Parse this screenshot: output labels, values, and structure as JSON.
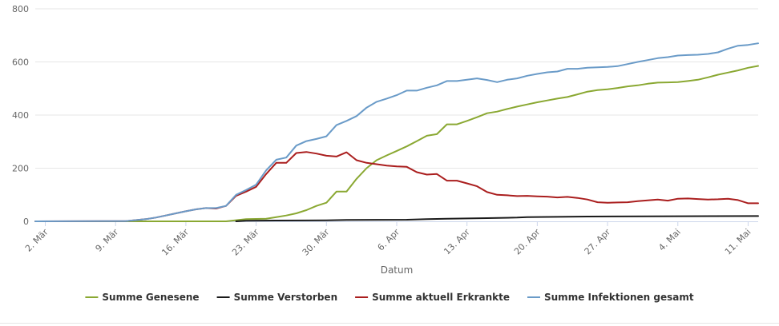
{
  "chart_data": {
    "type": "line",
    "xlabel": "Datum",
    "ylabel": "",
    "ylim": [
      0,
      800
    ],
    "yticks": [
      0,
      200,
      400,
      600,
      800
    ],
    "x_start": "2020-03-01",
    "x_end": "2020-05-12",
    "x_tick_labels": [
      "2. Mär",
      "9. Mär",
      "16. Mär",
      "23. Mär",
      "30. Mär",
      "6. Apr",
      "13. Apr",
      "20. Apr",
      "27. Apr",
      "4. Mai",
      "11. Mai"
    ],
    "x_tick_dates": [
      "2020-03-02",
      "2020-03-09",
      "2020-03-16",
      "2020-03-23",
      "2020-03-30",
      "2020-04-06",
      "2020-04-13",
      "2020-04-20",
      "2020-04-27",
      "2020-05-04",
      "2020-05-11"
    ],
    "grid": true,
    "legend_position": "bottom",
    "series": [
      {
        "name": "Summe Genesene",
        "color": "#8aa832",
        "points": [
          [
            "2020-03-01",
            0
          ],
          [
            "2020-03-20",
            0
          ],
          [
            "2020-03-22",
            8
          ],
          [
            "2020-03-24",
            10
          ],
          [
            "2020-03-25",
            16
          ],
          [
            "2020-03-26",
            22
          ],
          [
            "2020-03-27",
            30
          ],
          [
            "2020-03-28",
            42
          ],
          [
            "2020-03-29",
            58
          ],
          [
            "2020-03-30",
            70
          ],
          [
            "2020-03-31",
            112
          ],
          [
            "2020-04-01",
            112
          ],
          [
            "2020-04-02",
            160
          ],
          [
            "2020-04-03",
            200
          ],
          [
            "2020-04-04",
            230
          ],
          [
            "2020-04-05",
            248
          ],
          [
            "2020-04-06",
            265
          ],
          [
            "2020-04-07",
            282
          ],
          [
            "2020-04-08",
            302
          ],
          [
            "2020-04-09",
            322
          ],
          [
            "2020-04-10",
            328
          ],
          [
            "2020-04-11",
            365
          ],
          [
            "2020-04-12",
            365
          ],
          [
            "2020-04-13",
            378
          ],
          [
            "2020-04-14",
            392
          ],
          [
            "2020-04-15",
            407
          ],
          [
            "2020-04-16",
            413
          ],
          [
            "2020-04-17",
            423
          ],
          [
            "2020-04-18",
            432
          ],
          [
            "2020-04-19",
            440
          ],
          [
            "2020-04-20",
            448
          ],
          [
            "2020-04-21",
            455
          ],
          [
            "2020-04-22",
            462
          ],
          [
            "2020-04-23",
            468
          ],
          [
            "2020-04-24",
            478
          ],
          [
            "2020-04-25",
            488
          ],
          [
            "2020-04-26",
            494
          ],
          [
            "2020-04-27",
            497
          ],
          [
            "2020-04-28",
            502
          ],
          [
            "2020-04-29",
            508
          ],
          [
            "2020-04-30",
            512
          ],
          [
            "2020-05-01",
            518
          ],
          [
            "2020-05-02",
            522
          ],
          [
            "2020-05-03",
            523
          ],
          [
            "2020-05-04",
            524
          ],
          [
            "2020-05-05",
            528
          ],
          [
            "2020-05-06",
            533
          ],
          [
            "2020-05-07",
            542
          ],
          [
            "2020-05-08",
            552
          ],
          [
            "2020-05-09",
            560
          ],
          [
            "2020-05-10",
            568
          ],
          [
            "2020-05-11",
            578
          ],
          [
            "2020-05-12",
            585
          ]
        ]
      },
      {
        "name": "Summe Verstorben",
        "color": "#1a1a1a",
        "points": [
          [
            "2020-03-21",
            0
          ],
          [
            "2020-03-22",
            2
          ],
          [
            "2020-03-25",
            3
          ],
          [
            "2020-03-30",
            4
          ],
          [
            "2020-04-01",
            5
          ],
          [
            "2020-04-07",
            6
          ],
          [
            "2020-04-09",
            8
          ],
          [
            "2020-04-11",
            10
          ],
          [
            "2020-04-15",
            12
          ],
          [
            "2020-04-18",
            14
          ],
          [
            "2020-04-19",
            16
          ],
          [
            "2020-04-25",
            18
          ],
          [
            "2020-05-01",
            19
          ],
          [
            "2020-05-12",
            20
          ]
        ]
      },
      {
        "name": "Summe aktuell Erkrankte",
        "color": "#aa1e1e",
        "points": [
          [
            "2020-03-01",
            0
          ],
          [
            "2020-03-10",
            1
          ],
          [
            "2020-03-12",
            8
          ],
          [
            "2020-03-13",
            14
          ],
          [
            "2020-03-14",
            22
          ],
          [
            "2020-03-15",
            30
          ],
          [
            "2020-03-16",
            38
          ],
          [
            "2020-03-17",
            45
          ],
          [
            "2020-03-18",
            50
          ],
          [
            "2020-03-19",
            48
          ],
          [
            "2020-03-20",
            58
          ],
          [
            "2020-03-21",
            96
          ],
          [
            "2020-03-22",
            112
          ],
          [
            "2020-03-23",
            130
          ],
          [
            "2020-03-24",
            178
          ],
          [
            "2020-03-25",
            220
          ],
          [
            "2020-03-26",
            220
          ],
          [
            "2020-03-27",
            257
          ],
          [
            "2020-03-28",
            261
          ],
          [
            "2020-03-29",
            255
          ],
          [
            "2020-03-30",
            247
          ],
          [
            "2020-03-31",
            244
          ],
          [
            "2020-04-01",
            260
          ],
          [
            "2020-04-02",
            230
          ],
          [
            "2020-04-03",
            220
          ],
          [
            "2020-04-04",
            215
          ],
          [
            "2020-04-05",
            210
          ],
          [
            "2020-04-06",
            207
          ],
          [
            "2020-04-07",
            205
          ],
          [
            "2020-04-08",
            185
          ],
          [
            "2020-04-09",
            176
          ],
          [
            "2020-04-10",
            178
          ],
          [
            "2020-04-11",
            153
          ],
          [
            "2020-04-12",
            153
          ],
          [
            "2020-04-13",
            143
          ],
          [
            "2020-04-14",
            132
          ],
          [
            "2020-04-15",
            110
          ],
          [
            "2020-04-16",
            100
          ],
          [
            "2020-04-17",
            98
          ],
          [
            "2020-04-18",
            95
          ],
          [
            "2020-04-19",
            96
          ],
          [
            "2020-04-20",
            94
          ],
          [
            "2020-04-21",
            93
          ],
          [
            "2020-04-22",
            90
          ],
          [
            "2020-04-23",
            92
          ],
          [
            "2020-04-24",
            88
          ],
          [
            "2020-04-25",
            82
          ],
          [
            "2020-04-26",
            72
          ],
          [
            "2020-04-27",
            70
          ],
          [
            "2020-04-28",
            71
          ],
          [
            "2020-04-29",
            72
          ],
          [
            "2020-04-30",
            76
          ],
          [
            "2020-05-01",
            79
          ],
          [
            "2020-05-02",
            82
          ],
          [
            "2020-05-03",
            78
          ],
          [
            "2020-05-04",
            85
          ],
          [
            "2020-05-05",
            86
          ],
          [
            "2020-05-06",
            84
          ],
          [
            "2020-05-07",
            82
          ],
          [
            "2020-05-08",
            83
          ],
          [
            "2020-05-09",
            85
          ],
          [
            "2020-05-10",
            80
          ],
          [
            "2020-05-11",
            68
          ],
          [
            "2020-05-12",
            68
          ]
        ]
      },
      {
        "name": "Summe Infektionen gesamt",
        "color": "#6a9bc8",
        "points": [
          [
            "2020-03-01",
            0
          ],
          [
            "2020-03-10",
            1
          ],
          [
            "2020-03-12",
            8
          ],
          [
            "2020-03-13",
            14
          ],
          [
            "2020-03-14",
            22
          ],
          [
            "2020-03-15",
            30
          ],
          [
            "2020-03-16",
            38
          ],
          [
            "2020-03-17",
            45
          ],
          [
            "2020-03-18",
            50
          ],
          [
            "2020-03-19",
            50
          ],
          [
            "2020-03-20",
            58
          ],
          [
            "2020-03-21",
            100
          ],
          [
            "2020-03-22",
            118
          ],
          [
            "2020-03-23",
            138
          ],
          [
            "2020-03-24",
            192
          ],
          [
            "2020-03-25",
            232
          ],
          [
            "2020-03-26",
            240
          ],
          [
            "2020-03-27",
            285
          ],
          [
            "2020-03-28",
            302
          ],
          [
            "2020-03-29",
            310
          ],
          [
            "2020-03-30",
            320
          ],
          [
            "2020-03-31",
            362
          ],
          [
            "2020-04-01",
            378
          ],
          [
            "2020-04-02",
            396
          ],
          [
            "2020-04-03",
            428
          ],
          [
            "2020-04-04",
            450
          ],
          [
            "2020-04-05",
            462
          ],
          [
            "2020-04-06",
            475
          ],
          [
            "2020-04-07",
            492
          ],
          [
            "2020-04-08",
            492
          ],
          [
            "2020-04-09",
            503
          ],
          [
            "2020-04-10",
            512
          ],
          [
            "2020-04-11",
            528
          ],
          [
            "2020-04-12",
            528
          ],
          [
            "2020-04-13",
            533
          ],
          [
            "2020-04-14",
            538
          ],
          [
            "2020-04-15",
            532
          ],
          [
            "2020-04-16",
            524
          ],
          [
            "2020-04-17",
            533
          ],
          [
            "2020-04-18",
            538
          ],
          [
            "2020-04-19",
            548
          ],
          [
            "2020-04-20",
            555
          ],
          [
            "2020-04-21",
            561
          ],
          [
            "2020-04-22",
            564
          ],
          [
            "2020-04-23",
            574
          ],
          [
            "2020-04-24",
            574
          ],
          [
            "2020-04-25",
            578
          ],
          [
            "2020-04-26",
            580
          ],
          [
            "2020-04-27",
            581
          ],
          [
            "2020-04-28",
            584
          ],
          [
            "2020-04-29",
            592
          ],
          [
            "2020-04-30",
            600
          ],
          [
            "2020-05-01",
            607
          ],
          [
            "2020-05-02",
            614
          ],
          [
            "2020-05-03",
            618
          ],
          [
            "2020-05-04",
            624
          ],
          [
            "2020-05-05",
            626
          ],
          [
            "2020-05-06",
            627
          ],
          [
            "2020-05-07",
            630
          ],
          [
            "2020-05-08",
            636
          ],
          [
            "2020-05-09",
            650
          ],
          [
            "2020-05-10",
            661
          ],
          [
            "2020-05-11",
            664
          ],
          [
            "2020-05-12",
            670
          ]
        ]
      }
    ]
  }
}
